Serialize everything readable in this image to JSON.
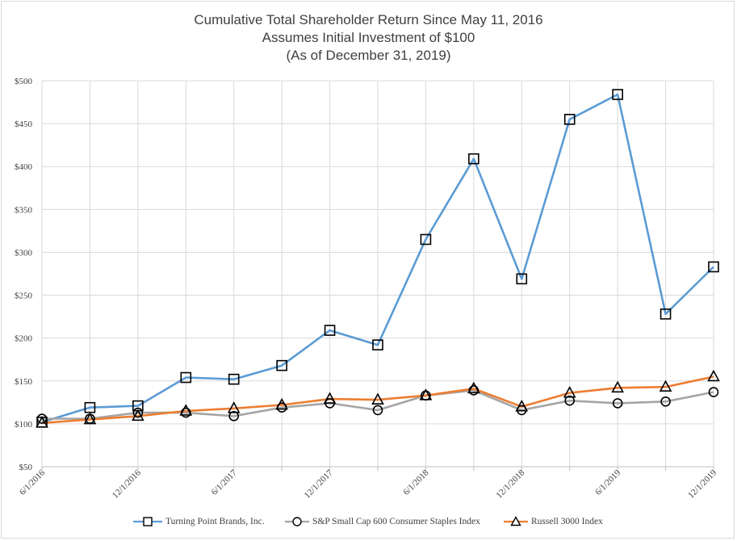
{
  "chart_data": {
    "type": "line",
    "title": [
      "Cumulative Total Shareholder Return Since May 11, 2016",
      "Assumes Initial Investment of $100",
      "(As of December 31, 2019)"
    ],
    "x": [
      "6/1/2016",
      "9/1/2016",
      "12/1/2016",
      "3/1/2017",
      "6/1/2017",
      "9/1/2017",
      "12/1/2017",
      "3/1/2018",
      "6/1/2018",
      "9/1/2018",
      "12/1/2018",
      "3/1/2019",
      "6/1/2019",
      "9/1/2019",
      "12/1/2019"
    ],
    "x_tick_labels": [
      "6/1/2016",
      "",
      "12/1/2016",
      "",
      "6/1/2017",
      "",
      "12/1/2017",
      "",
      "6/1/2018",
      "",
      "12/1/2018",
      "",
      "6/1/2019",
      "",
      "12/1/2019"
    ],
    "y_ticks": [
      "$50",
      "$100",
      "$150",
      "$200",
      "$250",
      "$300",
      "$350",
      "$400",
      "$450",
      "$500"
    ],
    "ylim": [
      50,
      500
    ],
    "grid": true,
    "legend_position": "bottom",
    "series": [
      {
        "name": "Turning Point Brands, Inc.",
        "color": "#5b9bd5",
        "marker": "square",
        "values": [
          102,
          119,
          121,
          154,
          152,
          168,
          209,
          192,
          315,
          409,
          269,
          455,
          484,
          228,
          283
        ]
      },
      {
        "name": "S&P Small Cap 600 Consumer Staples Index",
        "color": "#a5a5a5",
        "marker": "circle",
        "values": [
          106,
          106,
          113,
          113,
          109,
          119,
          124,
          116,
          133,
          139,
          116,
          127,
          124,
          126,
          137
        ]
      },
      {
        "name": "Russell 3000 Index",
        "color": "#ed7d31",
        "marker": "triangle",
        "values": [
          101,
          105,
          109,
          115,
          118,
          122,
          129,
          128,
          133,
          141,
          120,
          136,
          142,
          143,
          155
        ]
      }
    ]
  }
}
